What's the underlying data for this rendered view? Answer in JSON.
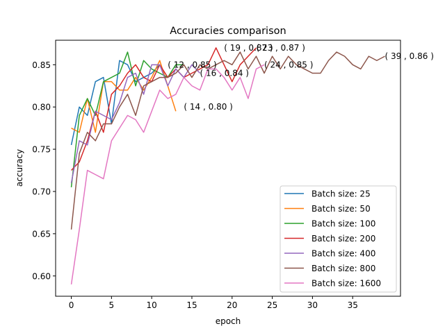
{
  "chart_data": {
    "type": "line",
    "title": "Accuracies comparison",
    "xlabel": "epoch",
    "ylabel": "accuracy",
    "xlim": [
      -1.95,
      40.95
    ],
    "ylim": [
      0.576,
      0.879
    ],
    "xticks": [
      0,
      5,
      10,
      15,
      20,
      25,
      30,
      35
    ],
    "xtick_labels": [
      "0",
      "5",
      "10",
      "15",
      "20",
      "25",
      "30",
      "35"
    ],
    "yticks": [
      0.6,
      0.65,
      0.7,
      0.75,
      0.8,
      0.85
    ],
    "ytick_labels": [
      "0.60",
      "0.65",
      "0.70",
      "0.75",
      "0.80",
      "0.85"
    ],
    "grid": false,
    "legend_position": "lower-right",
    "series": [
      {
        "name": "Batch size: 25",
        "color": "#1f77b4",
        "values": [
          0.755,
          0.8,
          0.79,
          0.83,
          0.835,
          0.78,
          0.855,
          0.85,
          0.83,
          0.835,
          0.84,
          0.85
        ]
      },
      {
        "name": "Batch size: 50",
        "color": "#ff7f0e",
        "values": [
          0.775,
          0.77,
          0.81,
          0.77,
          0.83,
          0.83,
          0.82,
          0.82,
          0.835,
          0.82,
          0.835,
          0.855,
          0.825,
          0.795
        ]
      },
      {
        "name": "Batch size: 100",
        "color": "#2ca02c",
        "values": [
          0.705,
          0.79,
          0.81,
          0.79,
          0.83,
          0.835,
          0.84,
          0.865,
          0.825,
          0.855,
          0.845,
          0.84,
          0.835,
          0.85,
          0.85
        ]
      },
      {
        "name": "Batch size: 200",
        "color": "#d62728",
        "values": [
          0.725,
          0.735,
          0.76,
          0.795,
          0.77,
          0.815,
          0.825,
          0.84,
          0.85,
          0.835,
          0.83,
          0.85,
          0.835,
          0.845,
          0.835,
          0.84,
          0.845,
          0.85,
          0.87,
          0.85,
          0.83,
          0.85,
          0.86,
          0.87
        ]
      },
      {
        "name": "Batch size: 400",
        "color": "#9467bd",
        "values": [
          0.71,
          0.76,
          0.755,
          0.795,
          0.79,
          0.785,
          0.805,
          0.835,
          0.84,
          0.815,
          0.85,
          0.85,
          0.825,
          0.845,
          0.835,
          0.85,
          0.84
        ]
      },
      {
        "name": "Batch size: 800",
        "color": "#8c564b",
        "values": [
          0.655,
          0.745,
          0.77,
          0.76,
          0.78,
          0.78,
          0.8,
          0.815,
          0.79,
          0.825,
          0.83,
          0.835,
          0.835,
          0.84,
          0.85,
          0.835,
          0.85,
          0.845,
          0.85,
          0.855,
          0.85,
          0.865,
          0.845,
          0.86,
          0.84,
          0.86,
          0.845,
          0.86,
          0.85,
          0.845,
          0.84,
          0.84,
          0.855,
          0.865,
          0.86,
          0.85,
          0.845,
          0.86,
          0.855,
          0.86
        ]
      },
      {
        "name": "Batch size: 1600",
        "color": "#e377c2",
        "values": [
          0.59,
          0.655,
          0.725,
          0.72,
          0.715,
          0.76,
          0.775,
          0.79,
          0.785,
          0.77,
          0.795,
          0.82,
          0.81,
          0.815,
          0.835,
          0.825,
          0.82,
          0.845,
          0.845,
          0.835,
          0.82,
          0.835,
          0.81,
          0.845,
          0.85
        ]
      }
    ],
    "annotations": [
      {
        "x": 12,
        "y": 0.85,
        "text": "( 12 , 0.85 )"
      },
      {
        "x": 14,
        "y": 0.8,
        "text": "( 14 , 0.80 )"
      },
      {
        "x": 16,
        "y": 0.84,
        "text": "( 16 , 0.84 )"
      },
      {
        "x": 19,
        "y": 0.87,
        "text": "( 19 , 0.87 )"
      },
      {
        "x": 23,
        "y": 0.87,
        "text": "( 23 , 0.87 )"
      },
      {
        "x": 24,
        "y": 0.85,
        "text": "( 24 , 0.85 )"
      },
      {
        "x": 39,
        "y": 0.86,
        "text": "( 39 , 0.86 )"
      }
    ]
  }
}
